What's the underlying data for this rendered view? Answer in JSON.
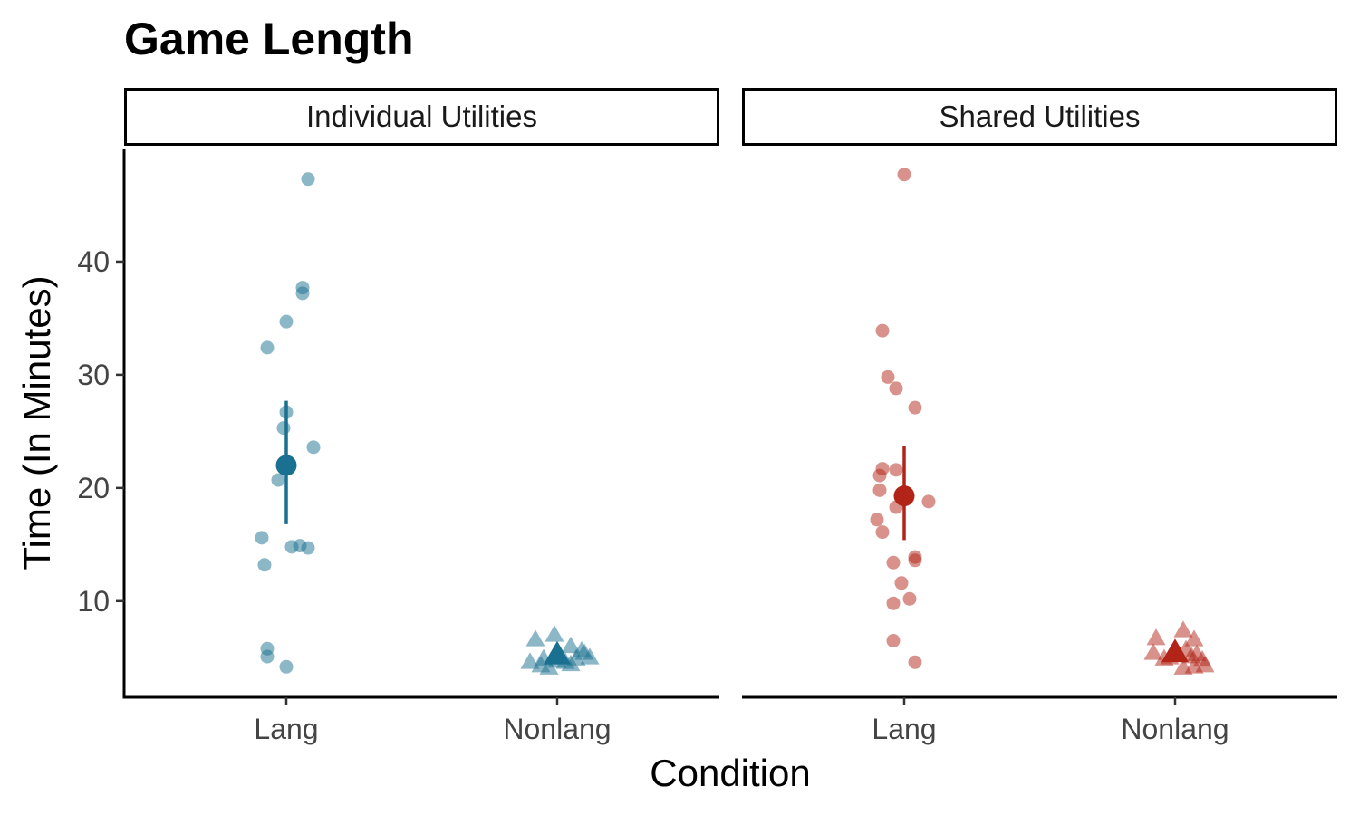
{
  "chart_data": {
    "type": "scatter",
    "title": "Game Length",
    "xlabel": "Condition",
    "ylabel": "Time (In Minutes)",
    "ylim": [
      1.5,
      50
    ],
    "yticks": [
      10,
      20,
      30,
      40
    ],
    "categories": [
      "Lang",
      "Nonlang"
    ],
    "grid": false,
    "legend": "none",
    "panels": [
      {
        "name": "Individual Utilities",
        "color": "#1a7090",
        "series": [
          {
            "category": "Lang",
            "shape": "circle",
            "points": [
              [
                0.08,
                47.3
              ],
              [
                0.06,
                37.7
              ],
              [
                0.06,
                37.2
              ],
              [
                0.0,
                34.7
              ],
              [
                -0.07,
                32.4
              ],
              [
                0.0,
                26.7
              ],
              [
                -0.01,
                25.3
              ],
              [
                0.1,
                23.6
              ],
              [
                -0.03,
                20.7
              ],
              [
                -0.09,
                15.6
              ],
              [
                0.02,
                14.8
              ],
              [
                0.05,
                14.9
              ],
              [
                0.08,
                14.7
              ],
              [
                -0.08,
                13.2
              ],
              [
                -0.07,
                5.8
              ],
              [
                -0.07,
                5.1
              ],
              [
                0.0,
                4.2
              ]
            ],
            "mean": 22.0,
            "lower": 16.8,
            "upper": 27.7
          },
          {
            "category": "Nonlang",
            "shape": "triangle",
            "points": [
              [
                -0.08,
                6.5
              ],
              [
                -0.01,
                6.9
              ],
              [
                0.05,
                5.9
              ],
              [
                0.1,
                5.3
              ],
              [
                -0.1,
                4.5
              ],
              [
                -0.06,
                4.2
              ],
              [
                -0.03,
                4.0
              ],
              [
                0.03,
                4.5
              ],
              [
                0.07,
                4.8
              ],
              [
                0.12,
                4.9
              ],
              [
                -0.05,
                4.8
              ],
              [
                0.0,
                4.6
              ],
              [
                0.05,
                4.3
              ],
              [
                0.09,
                5.5
              ]
            ],
            "mean": 5.1,
            "lower": 4.7,
            "upper": 5.5
          }
        ]
      },
      {
        "name": "Shared Utilities",
        "color": "#b22418",
        "series": [
          {
            "category": "Lang",
            "shape": "circle",
            "points": [
              [
                0.0,
                47.7
              ],
              [
                -0.08,
                33.9
              ],
              [
                -0.06,
                29.8
              ],
              [
                -0.03,
                28.8
              ],
              [
                0.04,
                27.1
              ],
              [
                -0.08,
                21.7
              ],
              [
                -0.09,
                21.1
              ],
              [
                -0.03,
                21.6
              ],
              [
                -0.09,
                19.8
              ],
              [
                0.09,
                18.8
              ],
              [
                -0.03,
                18.3
              ],
              [
                -0.1,
                17.2
              ],
              [
                -0.08,
                16.1
              ],
              [
                0.04,
                13.9
              ],
              [
                0.04,
                13.6
              ],
              [
                -0.04,
                13.4
              ],
              [
                -0.01,
                11.6
              ],
              [
                0.02,
                10.2
              ],
              [
                -0.04,
                9.8
              ],
              [
                -0.04,
                6.5
              ],
              [
                0.04,
                4.6
              ]
            ],
            "mean": 19.3,
            "lower": 15.4,
            "upper": 23.7
          },
          {
            "category": "Nonlang",
            "shape": "triangle",
            "points": [
              [
                -0.07,
                6.6
              ],
              [
                0.03,
                7.3
              ],
              [
                0.07,
                6.5
              ],
              [
                -0.08,
                5.3
              ],
              [
                -0.04,
                4.8
              ],
              [
                0.04,
                5.6
              ],
              [
                0.08,
                5.2
              ],
              [
                0.1,
                4.7
              ],
              [
                0.07,
                4.1
              ],
              [
                0.03,
                4.0
              ],
              [
                0.11,
                4.2
              ],
              [
                -0.02,
                4.9
              ],
              [
                0.06,
                5.0
              ]
            ],
            "mean": 5.3,
            "lower": 4.9,
            "upper": 5.7
          }
        ]
      }
    ]
  }
}
